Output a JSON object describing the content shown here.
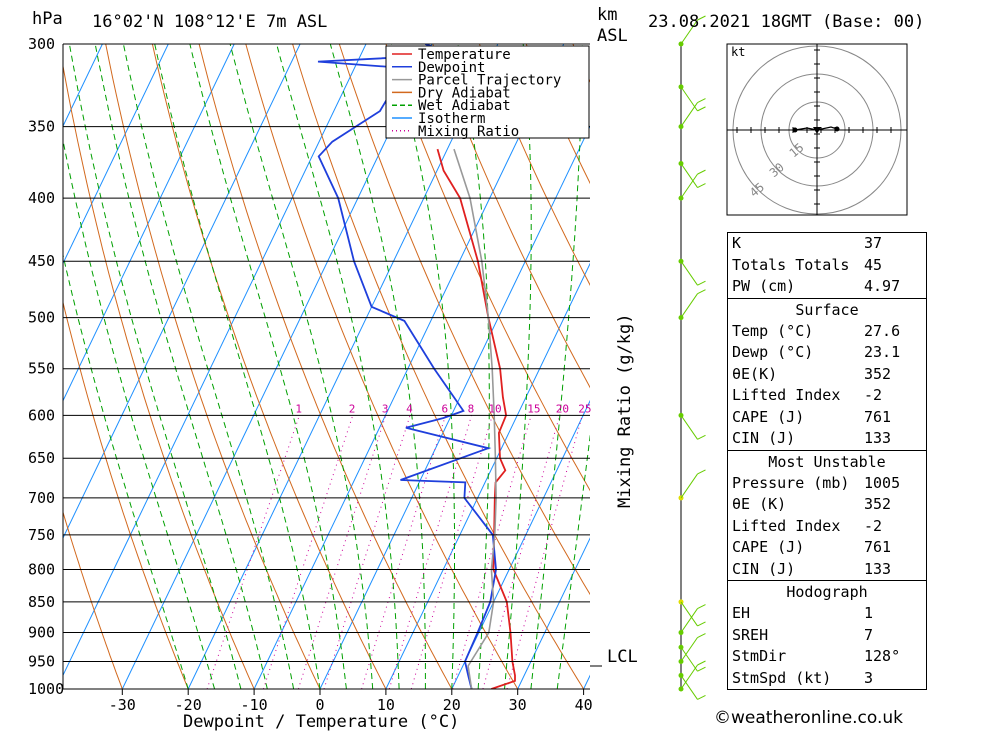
{
  "header": {
    "hpa_unit": "hPa",
    "location": "16°02'N  108°12'E  7m  ASL",
    "km_unit": "km",
    "asl_unit": "ASL",
    "datetime": "23.08.2021  18GMT  (Base: 00)"
  },
  "chart_data": {
    "type": "line",
    "title": "16°02'N  108°12'E  7m  ASL",
    "xlabel": "Dewpoint / Temperature (°C)",
    "ylabel": "hPa",
    "right_label": "Mixing Ratio (g/kg)",
    "pressure_ticks": [
      300,
      350,
      400,
      450,
      500,
      550,
      600,
      650,
      700,
      750,
      800,
      850,
      900,
      950,
      1000
    ],
    "temp_ticks": [
      -30,
      -20,
      -10,
      0,
      10,
      20,
      30,
      40
    ],
    "temp_range": [
      -40,
      40
    ],
    "pressure_range": [
      300,
      1000
    ],
    "mixing_ratio_labels": [
      "1",
      "2",
      "3",
      "4",
      "6",
      "8",
      "10",
      "15",
      "20",
      "25"
    ],
    "lcl_label": "LCL",
    "lcl_pressure": 958,
    "legend": [
      "Temperature",
      "Dewpoint",
      "Parcel Trajectory",
      "Dry Adiabat",
      "Wet Adiabat",
      "Isotherm",
      "Mixing Ratio"
    ],
    "colors": {
      "temperature": "#e02020",
      "dewpoint": "#1f3fdc",
      "parcel": "#999999",
      "dry_adiabat": "#d2691e",
      "wet_adiabat": "#00a000",
      "isotherm": "#1e90ff",
      "mixing_ratio": "#cc0099",
      "wind": "#66cc00"
    },
    "series": [
      {
        "name": "Temperature",
        "points": [
          [
            1000,
            26.0
          ],
          [
            985,
            29.0
          ],
          [
            975,
            28.6
          ],
          [
            950,
            27.2
          ],
          [
            900,
            24.8
          ],
          [
            850,
            22.0
          ],
          [
            800,
            17.6
          ],
          [
            750,
            15.2
          ],
          [
            700,
            12.6
          ],
          [
            680,
            11.6
          ],
          [
            665,
            12.2
          ],
          [
            650,
            10.5
          ],
          [
            620,
            8.5
          ],
          [
            600,
            8.3
          ],
          [
            580,
            6.5
          ],
          [
            550,
            4.0
          ],
          [
            500,
            -1.5
          ],
          [
            450,
            -7.2
          ],
          [
            400,
            -14.5
          ],
          [
            380,
            -19.0
          ],
          [
            365,
            -21.5
          ]
        ]
      },
      {
        "name": "Dewpoint",
        "points": [
          [
            1000,
            23.0
          ],
          [
            975,
            21.5
          ],
          [
            950,
            20.0
          ],
          [
            900,
            19.8
          ],
          [
            850,
            19.5
          ],
          [
            800,
            18.0
          ],
          [
            750,
            15.0
          ],
          [
            700,
            8.0
          ],
          [
            680,
            7.0
          ],
          [
            677,
            -3.0
          ],
          [
            638,
            8.0
          ],
          [
            614,
            -6.0
          ],
          [
            603,
            -1.0
          ],
          [
            595,
            1.5
          ],
          [
            550,
            -6.0
          ],
          [
            503,
            -14.0
          ],
          [
            490,
            -20.0
          ],
          [
            450,
            -26.0
          ],
          [
            400,
            -33.0
          ],
          [
            370,
            -39.0
          ],
          [
            360,
            -38.0
          ],
          [
            340,
            -33.0
          ],
          [
            322,
            -32.5
          ],
          [
            315,
            -28.0
          ],
          [
            310,
            -46.0
          ],
          [
            306,
            -26.0
          ],
          [
            300,
            -31.0
          ]
        ]
      },
      {
        "name": "Parcel Trajectory",
        "points": [
          [
            1000,
            23.0
          ],
          [
            958,
            20.8
          ],
          [
            900,
            21.5
          ],
          [
            850,
            20.0
          ],
          [
            800,
            17.3
          ],
          [
            750,
            15.3
          ],
          [
            700,
            12.8
          ],
          [
            650,
            9.8
          ],
          [
            600,
            6.5
          ],
          [
            550,
            2.8
          ],
          [
            500,
            -1.5
          ],
          [
            450,
            -6.6
          ],
          [
            400,
            -13.0
          ],
          [
            365,
            -19.0
          ]
        ]
      }
    ],
    "wind_levels": [
      1000,
      975,
      950,
      925,
      900,
      850,
      700,
      600,
      500,
      450,
      400,
      375,
      350,
      325,
      300
    ]
  },
  "hodograph": {
    "unit": "kt",
    "ring_labels": [
      "15",
      "30",
      "45"
    ]
  },
  "indices": {
    "rows": [
      {
        "k": "K",
        "v": "37"
      },
      {
        "k": "Totals Totals",
        "v": "45"
      },
      {
        "k": "PW (cm)",
        "v": "4.97"
      }
    ]
  },
  "surface": {
    "title": "Surface",
    "rows": [
      {
        "k": "Temp (°C)",
        "v": "27.6"
      },
      {
        "k": "Dewp (°C)",
        "v": "23.1"
      },
      {
        "k": "θE(K)",
        "v": "352"
      },
      {
        "k": "Lifted Index",
        "v": "-2"
      },
      {
        "k": "CAPE (J)",
        "v": "761"
      },
      {
        "k": "CIN (J)",
        "v": "133"
      }
    ]
  },
  "unstable": {
    "title": "Most Unstable",
    "rows": [
      {
        "k": "Pressure (mb)",
        "v": "1005"
      },
      {
        "k": "θE (K)",
        "v": "352"
      },
      {
        "k": "Lifted Index",
        "v": "-2"
      },
      {
        "k": "CAPE (J)",
        "v": "761"
      },
      {
        "k": "CIN (J)",
        "v": "133"
      }
    ]
  },
  "hodo_stats": {
    "title": "Hodograph",
    "rows": [
      {
        "k": "EH",
        "v": "1"
      },
      {
        "k": "SREH",
        "v": "7"
      },
      {
        "k": "StmDir",
        "v": "128°"
      },
      {
        "k": "StmSpd (kt)",
        "v": "3"
      }
    ]
  },
  "footer": {
    "copyright": "©weatheronline.co.uk"
  }
}
